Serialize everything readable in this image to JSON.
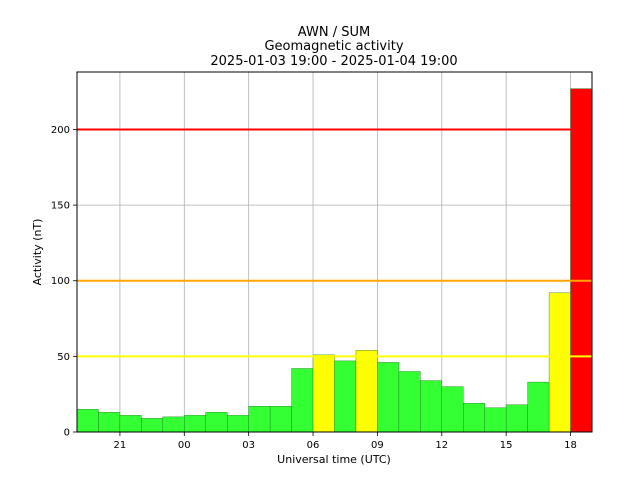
{
  "chart_data": {
    "type": "bar",
    "title": "AWN / SUM",
    "subtitle": "Geomagnetic activity",
    "period": "2025-01-03 19:00 - 2025-01-04 19:00",
    "xlabel": "Universal time (UTC)",
    "ylabel": "Activity (nT)",
    "ylim": [
      0,
      238
    ],
    "xlim": [
      19,
      43
    ],
    "grid": true,
    "yticks": [
      0,
      50,
      100,
      150,
      200
    ],
    "xticks": [
      {
        "hour": 21,
        "label": "21"
      },
      {
        "hour": 24,
        "label": "00"
      },
      {
        "hour": 27,
        "label": "03"
      },
      {
        "hour": 30,
        "label": "06"
      },
      {
        "hour": 33,
        "label": "09"
      },
      {
        "hour": 36,
        "label": "12"
      },
      {
        "hour": 39,
        "label": "15"
      },
      {
        "hour": 42,
        "label": "18"
      }
    ],
    "bar_width_hours": 1,
    "bar_start_hours": [
      19,
      20,
      21,
      22,
      23,
      24,
      25,
      26,
      27,
      28,
      29,
      30,
      31,
      32,
      33,
      34,
      35,
      36,
      37,
      38,
      39,
      40,
      41,
      42
    ],
    "values": [
      15,
      13,
      11,
      9,
      10,
      11,
      13,
      11,
      17,
      17,
      42,
      51,
      47,
      54,
      46,
      40,
      34,
      30,
      19,
      16,
      18,
      33,
      92,
      227
    ],
    "threshold_lines": [
      {
        "value": 50,
        "color": "#ffff00"
      },
      {
        "value": 100,
        "color": "#ffa500"
      },
      {
        "value": 200,
        "color": "#ff0000"
      }
    ],
    "bar_colors": {
      "low": "#33ff33",
      "moderate": "#ffff00",
      "high": "#ffa500",
      "extreme": "#ff0000"
    }
  }
}
